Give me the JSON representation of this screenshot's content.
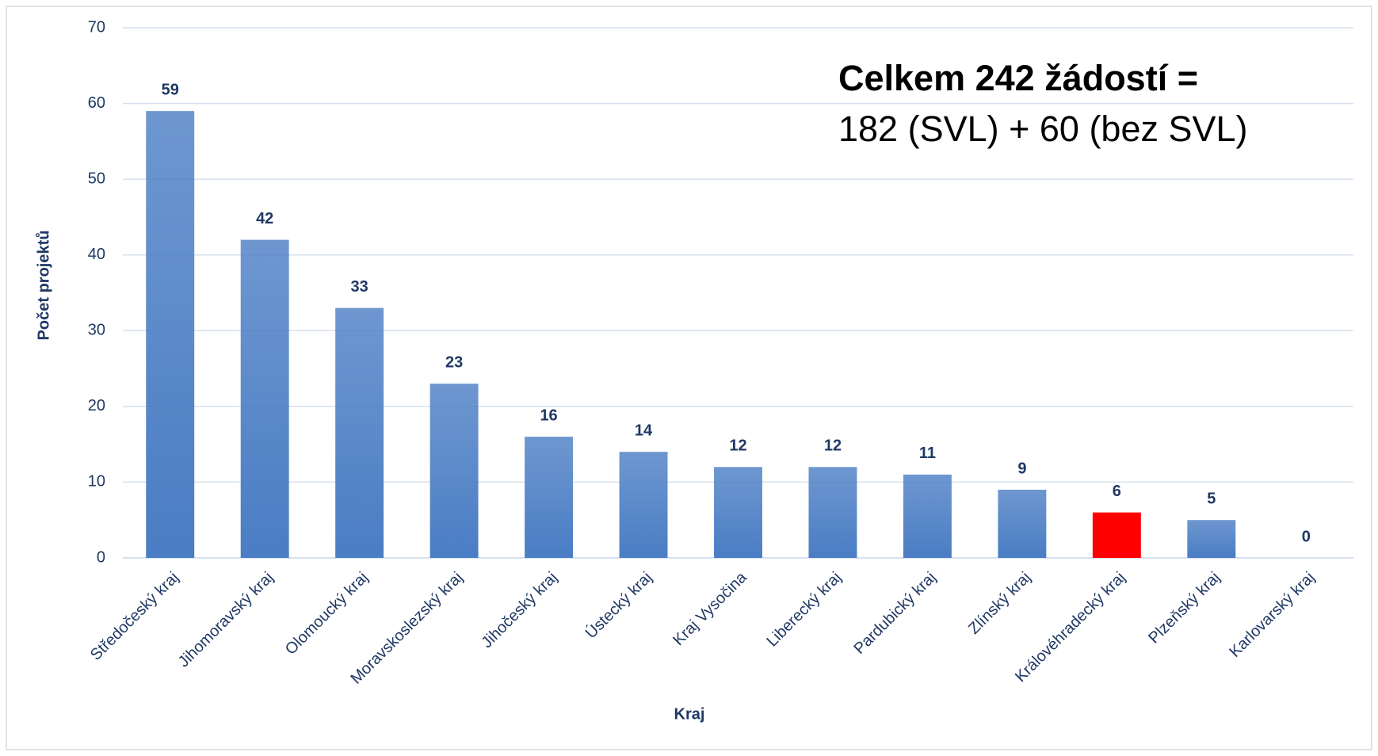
{
  "chart_data": {
    "type": "bar",
    "x_label": "Kraj",
    "y_label": "Počet projektů",
    "annotations": [
      "Celkem 242 žádostí  =",
      "182 (SVL) + 60 (bez SVL)"
    ],
    "categories": [
      "Středočeský kraj",
      "Jihomoravský kraj",
      "Olomoucký kraj",
      "Moravskoslezský kraj",
      "Jihočeský kraj",
      "Ústecký kraj",
      "Kraj Vysočina",
      "Liberecký kraj",
      "Pardubický kraj",
      "Zlínský kraj",
      "Královéhradecký kraj",
      "Plzeňský kraj",
      "Karlovarský kraj"
    ],
    "values": [
      59,
      42,
      33,
      23,
      16,
      14,
      12,
      12,
      11,
      9,
      6,
      5,
      0
    ],
    "colors": [
      "#4a7dc4",
      "#4a7dc4",
      "#4a7dc4",
      "#4a7dc4",
      "#4a7dc4",
      "#4a7dc4",
      "#4a7dc4",
      "#4a7dc4",
      "#4a7dc4",
      "#4a7dc4",
      "#ff0000",
      "#4a7dc4",
      "#4a7dc4"
    ],
    "ylim": [
      0,
      70
    ],
    "yticks": [
      0,
      10,
      20,
      30,
      40,
      50,
      60,
      70
    ],
    "grid": true
  }
}
